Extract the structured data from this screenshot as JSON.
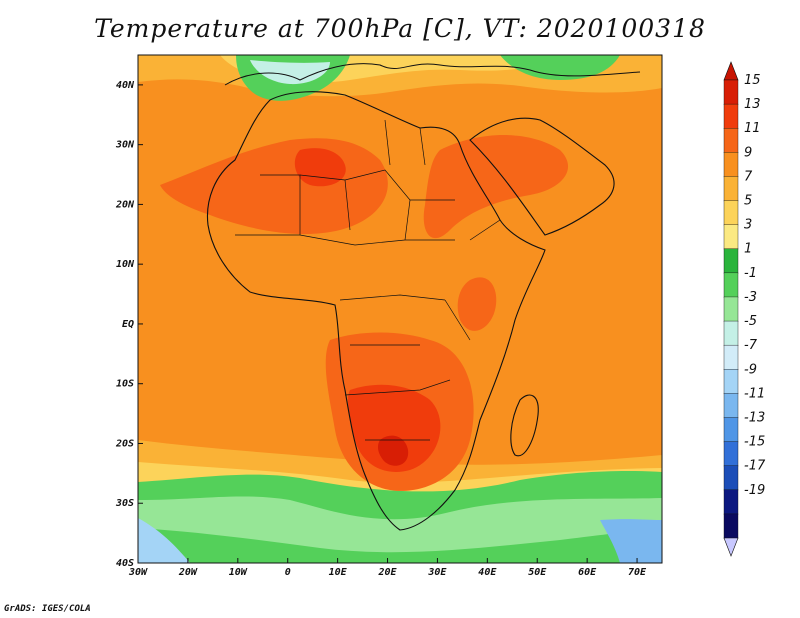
{
  "title": "Temperature at 700hPa [C], VT: 2020100318",
  "credit": "GrADS: IGES/COLA",
  "map": {
    "lon_labels": [
      "30W",
      "20W",
      "10W",
      "0",
      "10E",
      "20E",
      "30E",
      "40E",
      "50E",
      "60E",
      "70E"
    ],
    "lat_labels": [
      "40N",
      "30N",
      "20N",
      "10N",
      "EQ",
      "10S",
      "20S",
      "30S",
      "40S"
    ],
    "lon_range": [
      -30,
      75
    ],
    "lat_range": [
      -40,
      45
    ]
  },
  "colorbar": {
    "labels": [
      "15",
      "13",
      "11",
      "9",
      "7",
      "5",
      "3",
      "1",
      "-1",
      "-3",
      "-5",
      "-7",
      "-9",
      "-11",
      "-13",
      "-15",
      "-17",
      "-19"
    ],
    "colors": [
      "#d81e05",
      "#f03c0c",
      "#f66618",
      "#f8901f",
      "#fab236",
      "#fcd35a",
      "#fbe982",
      "#2ab43c",
      "#54d05a",
      "#96e696",
      "#c4f0e6",
      "#d2ecf8",
      "#a4d4f6",
      "#7ab7ef",
      "#5096e6",
      "#3270d8",
      "#1c4eb8",
      "#0c1880",
      "#0a0a60"
    ],
    "top_arrow_color": "#c81402",
    "bottom_arrow_color": "#c8c8ff"
  }
}
